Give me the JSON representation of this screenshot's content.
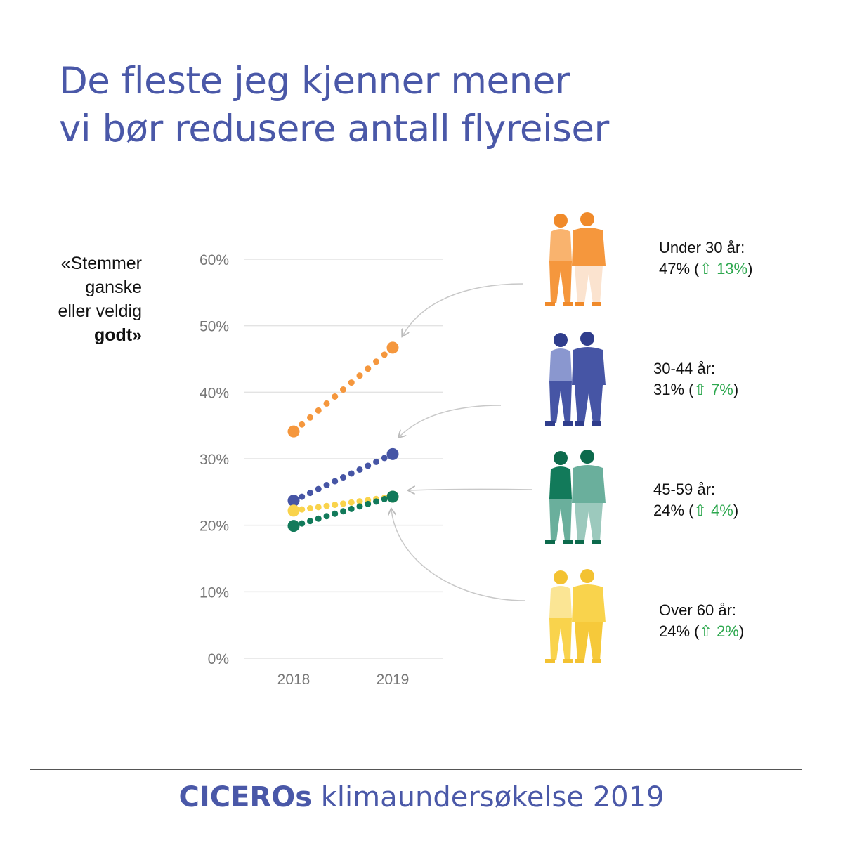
{
  "title": {
    "line1": "De fleste jeg kjenner mener",
    "line2": "vi bør redusere antall flyreiser"
  },
  "quote": {
    "line1": "«Stemmer",
    "line2": "ganske",
    "line3": "eller veldig",
    "line4": "godt»"
  },
  "chart_data": {
    "type": "line",
    "title": "De fleste jeg kjenner mener vi bør redusere antall flyreiser",
    "ylabel": "«Stemmer ganske eller veldig godt»",
    "x": [
      "2018",
      "2019"
    ],
    "ylim": [
      0,
      60
    ],
    "yticks": [
      "0%",
      "10%",
      "20%",
      "30%",
      "40%",
      "50%",
      "60%"
    ],
    "grid": true,
    "series": [
      {
        "name": "Under 30 år",
        "values": [
          34,
          47
        ],
        "color": "#f5973d"
      },
      {
        "name": "30-44 år",
        "values": [
          24,
          31
        ],
        "color": "#4655a5"
      },
      {
        "name": "45-59 år",
        "values": [
          20,
          24
        ],
        "color": "#127a5a"
      },
      {
        "name": "Over 60 år",
        "values": [
          22,
          24
        ],
        "color": "#f9d34c"
      }
    ]
  },
  "groups": [
    {
      "name": "Under 30 år:",
      "value": "47%",
      "change": "13%",
      "figure": "young-couple-icon"
    },
    {
      "name": "30-44 år:",
      "value": "31%",
      "change": "7%",
      "figure": "adult-couple-icon"
    },
    {
      "name": "45-59 år:",
      "value": "24%",
      "change": "4%",
      "figure": "middle-aged-couple-icon"
    },
    {
      "name": "Over 60 år:",
      "value": "24%",
      "change": "2%",
      "figure": "senior-couple-icon"
    }
  ],
  "up_arrow": "⇧",
  "footer": {
    "brand": "CICEROs",
    "rest": " klimaundersøkelse 2019"
  }
}
